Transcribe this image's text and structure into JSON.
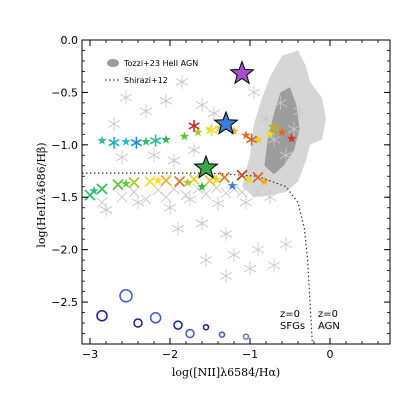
{
  "chart_data": {
    "type": "scatter",
    "xlabel": "log([NII]λ6584/Hα)",
    "ylabel": "log(HeIIλ4686/Hβ)",
    "xlim": [
      -3.1,
      0.75
    ],
    "ylim": [
      -2.9,
      0.0
    ],
    "xticks": [
      -3,
      -2,
      -1,
      0
    ],
    "yticks": [
      -2.5,
      -2.0,
      -1.5,
      -1.0,
      -0.5,
      0.0
    ],
    "tick_labels_x": [
      "−3",
      "−2",
      "−1",
      "0"
    ],
    "tick_labels_y": [
      "−2.5",
      "−2.0",
      "−1.5",
      "−1.0",
      "−0.5",
      "0.0"
    ],
    "legend": [
      {
        "label": "Tozzi+23 HeII AGN",
        "marker": "gray-filled-contour"
      },
      {
        "label": "Shirazi+12",
        "marker": "dotted-line"
      }
    ],
    "legend_position": "top-left",
    "annotations": [
      {
        "text": "z=0",
        "position": "bottom-center-right"
      },
      {
        "text": "SFGs",
        "position": "bottom-center-right"
      },
      {
        "text": "z=0",
        "position": "bottom-right"
      },
      {
        "text": "AGN",
        "position": "bottom-right"
      }
    ],
    "colors": {
      "contour_outer": "#d6d6d6",
      "contour_inner": "#9d9d9d",
      "background_markers": "#c8c8c8",
      "big_star_purple": "#a64fd1",
      "big_star_blue": "#3c7dd8",
      "big_star_green": "#3aa84a",
      "circles": "#1a1aa0",
      "shirazi_line": "#333333"
    },
    "series": [
      {
        "marker": "big-star",
        "points": [
          {
            "x": -1.1,
            "y": -0.32,
            "color": "#a64fd1"
          },
          {
            "x": -1.3,
            "y": -0.8,
            "color": "#3c7dd8"
          },
          {
            "x": -1.55,
            "y": -1.22,
            "color": "#3aa84a"
          }
        ]
      },
      {
        "marker": "colored-star-upper-row",
        "points": [
          {
            "x": -2.85,
            "y": -0.96,
            "color": "#2bbfa0"
          },
          {
            "x": -2.55,
            "y": -0.97,
            "color": "#22c0c0"
          },
          {
            "x": -2.3,
            "y": -0.97,
            "color": "#2bbf70"
          },
          {
            "x": -2.05,
            "y": -0.95,
            "color": "#22c050"
          },
          {
            "x": -1.82,
            "y": -0.92,
            "color": "#5ac83a"
          },
          {
            "x": -1.65,
            "y": -0.88,
            "color": "#9ecf2a"
          },
          {
            "x": -1.5,
            "y": -0.86,
            "color": "#f0e020"
          },
          {
            "x": -1.38,
            "y": -0.84,
            "color": "#f7c020"
          },
          {
            "x": -1.2,
            "y": -0.87,
            "color": "#f0b020"
          },
          {
            "x": -1.05,
            "y": -0.91,
            "color": "#f06a20"
          },
          {
            "x": -0.9,
            "y": -0.95,
            "color": "#f0d020"
          },
          {
            "x": -0.75,
            "y": -0.9,
            "color": "#e8e020"
          },
          {
            "x": -0.6,
            "y": -0.88,
            "color": "#e06a20"
          },
          {
            "x": -0.48,
            "y": -0.94,
            "color": "#d83020"
          }
        ]
      },
      {
        "marker": "colored-asterisk-upper-row",
        "points": [
          {
            "x": -2.7,
            "y": -0.98,
            "color": "#1fb0c8"
          },
          {
            "x": -2.42,
            "y": -0.98,
            "color": "#1f8fd0"
          },
          {
            "x": -2.18,
            "y": -0.96,
            "color": "#1fc090"
          },
          {
            "x": -1.7,
            "y": -0.82,
            "color": "#c83020"
          },
          {
            "x": -1.48,
            "y": -0.86,
            "color": "#e8e040"
          },
          {
            "x": -0.98,
            "y": -0.95,
            "color": "#e06020"
          },
          {
            "x": -0.7,
            "y": -0.84,
            "color": "#c0b020"
          }
        ]
      },
      {
        "marker": "colored-x-lower-row",
        "points": [
          {
            "x": -3.0,
            "y": -1.48,
            "color": "#2bbf70"
          },
          {
            "x": -2.85,
            "y": -1.42,
            "color": "#33c25a"
          },
          {
            "x": -2.65,
            "y": -1.38,
            "color": "#5ac83a"
          },
          {
            "x": -2.45,
            "y": -1.36,
            "color": "#a8cf2a"
          },
          {
            "x": -2.25,
            "y": -1.35,
            "color": "#f0e030"
          },
          {
            "x": -2.05,
            "y": -1.34,
            "color": "#f0b030"
          },
          {
            "x": -1.88,
            "y": -1.35,
            "color": "#e07a30"
          },
          {
            "x": -1.7,
            "y": -1.33,
            "color": "#e8d030"
          },
          {
            "x": -1.5,
            "y": -1.34,
            "color": "#f0c030"
          },
          {
            "x": -1.32,
            "y": -1.31,
            "color": "#e07a30"
          },
          {
            "x": -1.1,
            "y": -1.29,
            "color": "#c84020"
          },
          {
            "x": -0.9,
            "y": -1.31,
            "color": "#e06a30"
          }
        ]
      },
      {
        "marker": "colored-star-lower-row",
        "points": [
          {
            "x": -2.95,
            "y": -1.44,
            "color": "#2bbf90"
          },
          {
            "x": -2.55,
            "y": -1.37,
            "color": "#6ac83a"
          },
          {
            "x": -2.15,
            "y": -1.34,
            "color": "#f0e020"
          },
          {
            "x": -1.78,
            "y": -1.36,
            "color": "#a8cf2a"
          },
          {
            "x": -1.6,
            "y": -1.4,
            "color": "#22c050"
          },
          {
            "x": -1.42,
            "y": -1.33,
            "color": "#f0d020"
          },
          {
            "x": -1.22,
            "y": -1.39,
            "color": "#3c7dd8"
          },
          {
            "x": -1.02,
            "y": -1.33,
            "color": "#e8e020"
          },
          {
            "x": -0.82,
            "y": -1.35,
            "color": "#f0b020"
          }
        ]
      },
      {
        "marker": "open-circle",
        "points": [
          {
            "x": -2.55,
            "y": -2.44,
            "color": "#3a5ad0",
            "size": 6
          },
          {
            "x": -2.85,
            "y": -2.63,
            "color": "#1a1aa0",
            "size": 5
          },
          {
            "x": -2.4,
            "y": -2.7,
            "color": "#1a1aa0",
            "size": 4
          },
          {
            "x": -2.18,
            "y": -2.65,
            "color": "#3a5ad0",
            "size": 5
          },
          {
            "x": -1.9,
            "y": -2.72,
            "color": "#1a1aa0",
            "size": 4
          },
          {
            "x": -1.75,
            "y": -2.8,
            "color": "#3a5ad0",
            "size": 4
          },
          {
            "x": -1.55,
            "y": -2.74,
            "color": "#1a1aa0",
            "size": 2.5
          },
          {
            "x": -1.35,
            "y": -2.81,
            "color": "#3a5ad0",
            "size": 2.5
          },
          {
            "x": -1.05,
            "y": -2.83,
            "color": "#5a7ad8",
            "size": 2.5
          }
        ]
      },
      {
        "marker": "gray-asterisk-background",
        "points": [
          {
            "x": -2.55,
            "y": -0.55
          },
          {
            "x": -2.3,
            "y": -0.68
          },
          {
            "x": -2.05,
            "y": -0.58
          },
          {
            "x": -1.85,
            "y": -0.4
          },
          {
            "x": -1.6,
            "y": -0.62
          },
          {
            "x": -2.7,
            "y": -0.8
          },
          {
            "x": -1.45,
            "y": -0.7
          },
          {
            "x": -1.7,
            "y": -1.05
          },
          {
            "x": -2.2,
            "y": -1.1
          },
          {
            "x": -2.6,
            "y": -1.12
          },
          {
            "x": -1.95,
            "y": -1.15
          },
          {
            "x": -2.8,
            "y": -1.62
          },
          {
            "x": -2.4,
            "y": -1.55
          },
          {
            "x": -2.0,
            "y": -1.6
          },
          {
            "x": -1.75,
            "y": -1.52
          },
          {
            "x": -1.4,
            "y": -1.56
          },
          {
            "x": -1.05,
            "y": -1.55
          },
          {
            "x": -0.75,
            "y": -1.5
          },
          {
            "x": -1.9,
            "y": -1.8
          },
          {
            "x": -1.6,
            "y": -1.75
          },
          {
            "x": -1.3,
            "y": -1.85
          },
          {
            "x": -1.55,
            "y": -2.1
          },
          {
            "x": -1.2,
            "y": -2.05
          },
          {
            "x": -0.9,
            "y": -2.0
          },
          {
            "x": -1.0,
            "y": -2.18
          },
          {
            "x": -0.7,
            "y": -2.15
          },
          {
            "x": -1.3,
            "y": -2.25
          },
          {
            "x": -0.55,
            "y": -1.95
          },
          {
            "x": -0.95,
            "y": -0.5
          },
          {
            "x": -0.8,
            "y": -0.75
          },
          {
            "x": -0.7,
            "y": -0.95
          },
          {
            "x": -0.55,
            "y": -1.1
          },
          {
            "x": -0.45,
            "y": -0.85
          },
          {
            "x": -0.62,
            "y": -0.6
          },
          {
            "x": -0.38,
            "y": -0.68
          }
        ]
      },
      {
        "marker": "gray-x-background",
        "points": [
          {
            "x": -2.6,
            "y": -1.5
          },
          {
            "x": -2.3,
            "y": -1.52
          },
          {
            "x": -2.05,
            "y": -1.5
          },
          {
            "x": -1.8,
            "y": -1.48
          },
          {
            "x": -1.55,
            "y": -1.47
          },
          {
            "x": -1.3,
            "y": -1.46
          },
          {
            "x": -1.1,
            "y": -1.45
          },
          {
            "x": -0.9,
            "y": -1.45
          },
          {
            "x": -2.85,
            "y": -1.55
          },
          {
            "x": -2.45,
            "y": -1.45
          },
          {
            "x": -2.15,
            "y": -1.43
          },
          {
            "x": -1.95,
            "y": -1.42
          },
          {
            "x": -1.65,
            "y": -1.42
          },
          {
            "x": -1.42,
            "y": -1.41
          },
          {
            "x": -1.2,
            "y": -1.42
          }
        ]
      }
    ],
    "shirazi_line": [
      {
        "x": -3.1,
        "y": -1.27
      },
      {
        "x": -1.5,
        "y": -1.27
      },
      {
        "x": -0.9,
        "y": -1.3
      },
      {
        "x": -0.55,
        "y": -1.4
      },
      {
        "x": -0.4,
        "y": -1.55
      },
      {
        "x": -0.32,
        "y": -1.8
      },
      {
        "x": -0.28,
        "y": -2.1
      },
      {
        "x": -0.25,
        "y": -2.5
      },
      {
        "x": -0.22,
        "y": -2.9
      }
    ],
    "contour_outer": [
      {
        "x": -1.1,
        "y": -1.4
      },
      {
        "x": -1.0,
        "y": -1.1
      },
      {
        "x": -0.95,
        "y": -0.8
      },
      {
        "x": -0.85,
        "y": -0.55
      },
      {
        "x": -0.75,
        "y": -0.35
      },
      {
        "x": -0.6,
        "y": -0.15
      },
      {
        "x": -0.4,
        "y": -0.1
      },
      {
        "x": -0.3,
        "y": -0.25
      },
      {
        "x": -0.25,
        "y": -0.4
      },
      {
        "x": -0.1,
        "y": -0.55
      },
      {
        "x": -0.05,
        "y": -0.75
      },
      {
        "x": -0.1,
        "y": -0.95
      },
      {
        "x": -0.25,
        "y": -1.0
      },
      {
        "x": -0.3,
        "y": -1.15
      },
      {
        "x": -0.4,
        "y": -1.35
      },
      {
        "x": -0.55,
        "y": -1.45
      },
      {
        "x": -0.75,
        "y": -1.48
      },
      {
        "x": -0.95,
        "y": -1.5
      }
    ],
    "contour_inner": [
      {
        "x": -0.82,
        "y": -1.2
      },
      {
        "x": -0.78,
        "y": -0.95
      },
      {
        "x": -0.7,
        "y": -0.7
      },
      {
        "x": -0.62,
        "y": -0.5
      },
      {
        "x": -0.5,
        "y": -0.45
      },
      {
        "x": -0.42,
        "y": -0.62
      },
      {
        "x": -0.38,
        "y": -0.85
      },
      {
        "x": -0.45,
        "y": -1.05
      },
      {
        "x": -0.58,
        "y": -1.2
      },
      {
        "x": -0.7,
        "y": -1.28
      }
    ]
  }
}
